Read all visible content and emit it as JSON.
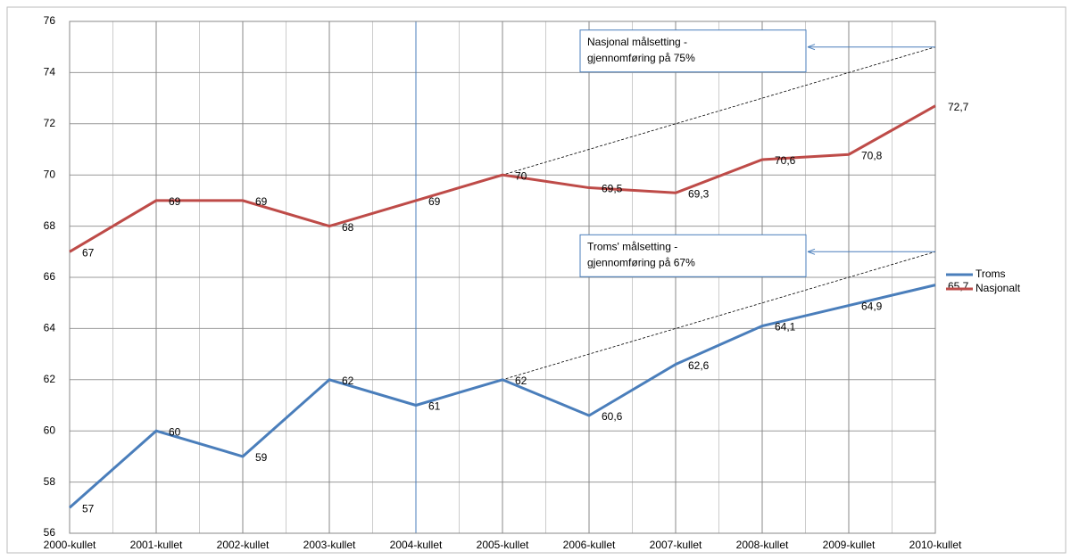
{
  "chart_data": {
    "type": "line",
    "categories": [
      "2000-kullet",
      "2001-kullet",
      "2002-kullet",
      "2003-kullet",
      "2004-kullet",
      "2005-kullet",
      "2006-kullet",
      "2007-kullet",
      "2008-kullet",
      "2009-kullet",
      "2010-kullet"
    ],
    "series": [
      {
        "name": "Troms",
        "color": "#4a7ebb",
        "values": [
          57,
          60,
          59,
          62,
          61,
          62,
          60.6,
          62.6,
          64.1,
          64.9,
          65.7
        ],
        "value_labels": [
          "57",
          "60",
          "59",
          "62",
          "61",
          "62",
          "60,6",
          "62,6",
          "64,1",
          "64,9",
          "65,7"
        ]
      },
      {
        "name": "Nasjonalt",
        "color": "#be4b48",
        "values": [
          67,
          69,
          69,
          68,
          69,
          70,
          69.5,
          69.3,
          70.6,
          70.8,
          72.7
        ],
        "value_labels": [
          "67",
          "69",
          "69",
          "68",
          "69",
          "70",
          "69,5",
          "69,3",
          "70,6",
          "70,8",
          "72,7"
        ]
      }
    ],
    "ylim": [
      56,
      76
    ],
    "yticks": [
      56,
      58,
      60,
      62,
      64,
      66,
      68,
      70,
      72,
      74,
      76
    ],
    "grid": true,
    "highlight_category": "2004-kullet",
    "targets": [
      {
        "series": "Nasjonalt",
        "start_category": "2004-kullet",
        "target": 75,
        "text": [
          "Nasjonal målsetting -",
          "gjennomføring på 75%"
        ]
      },
      {
        "series": "Troms",
        "start_category": "2004-kullet",
        "target": 67,
        "text": [
          "Troms' målsetting -",
          "gjennomføring på 67%"
        ]
      }
    ],
    "legend": "right"
  }
}
